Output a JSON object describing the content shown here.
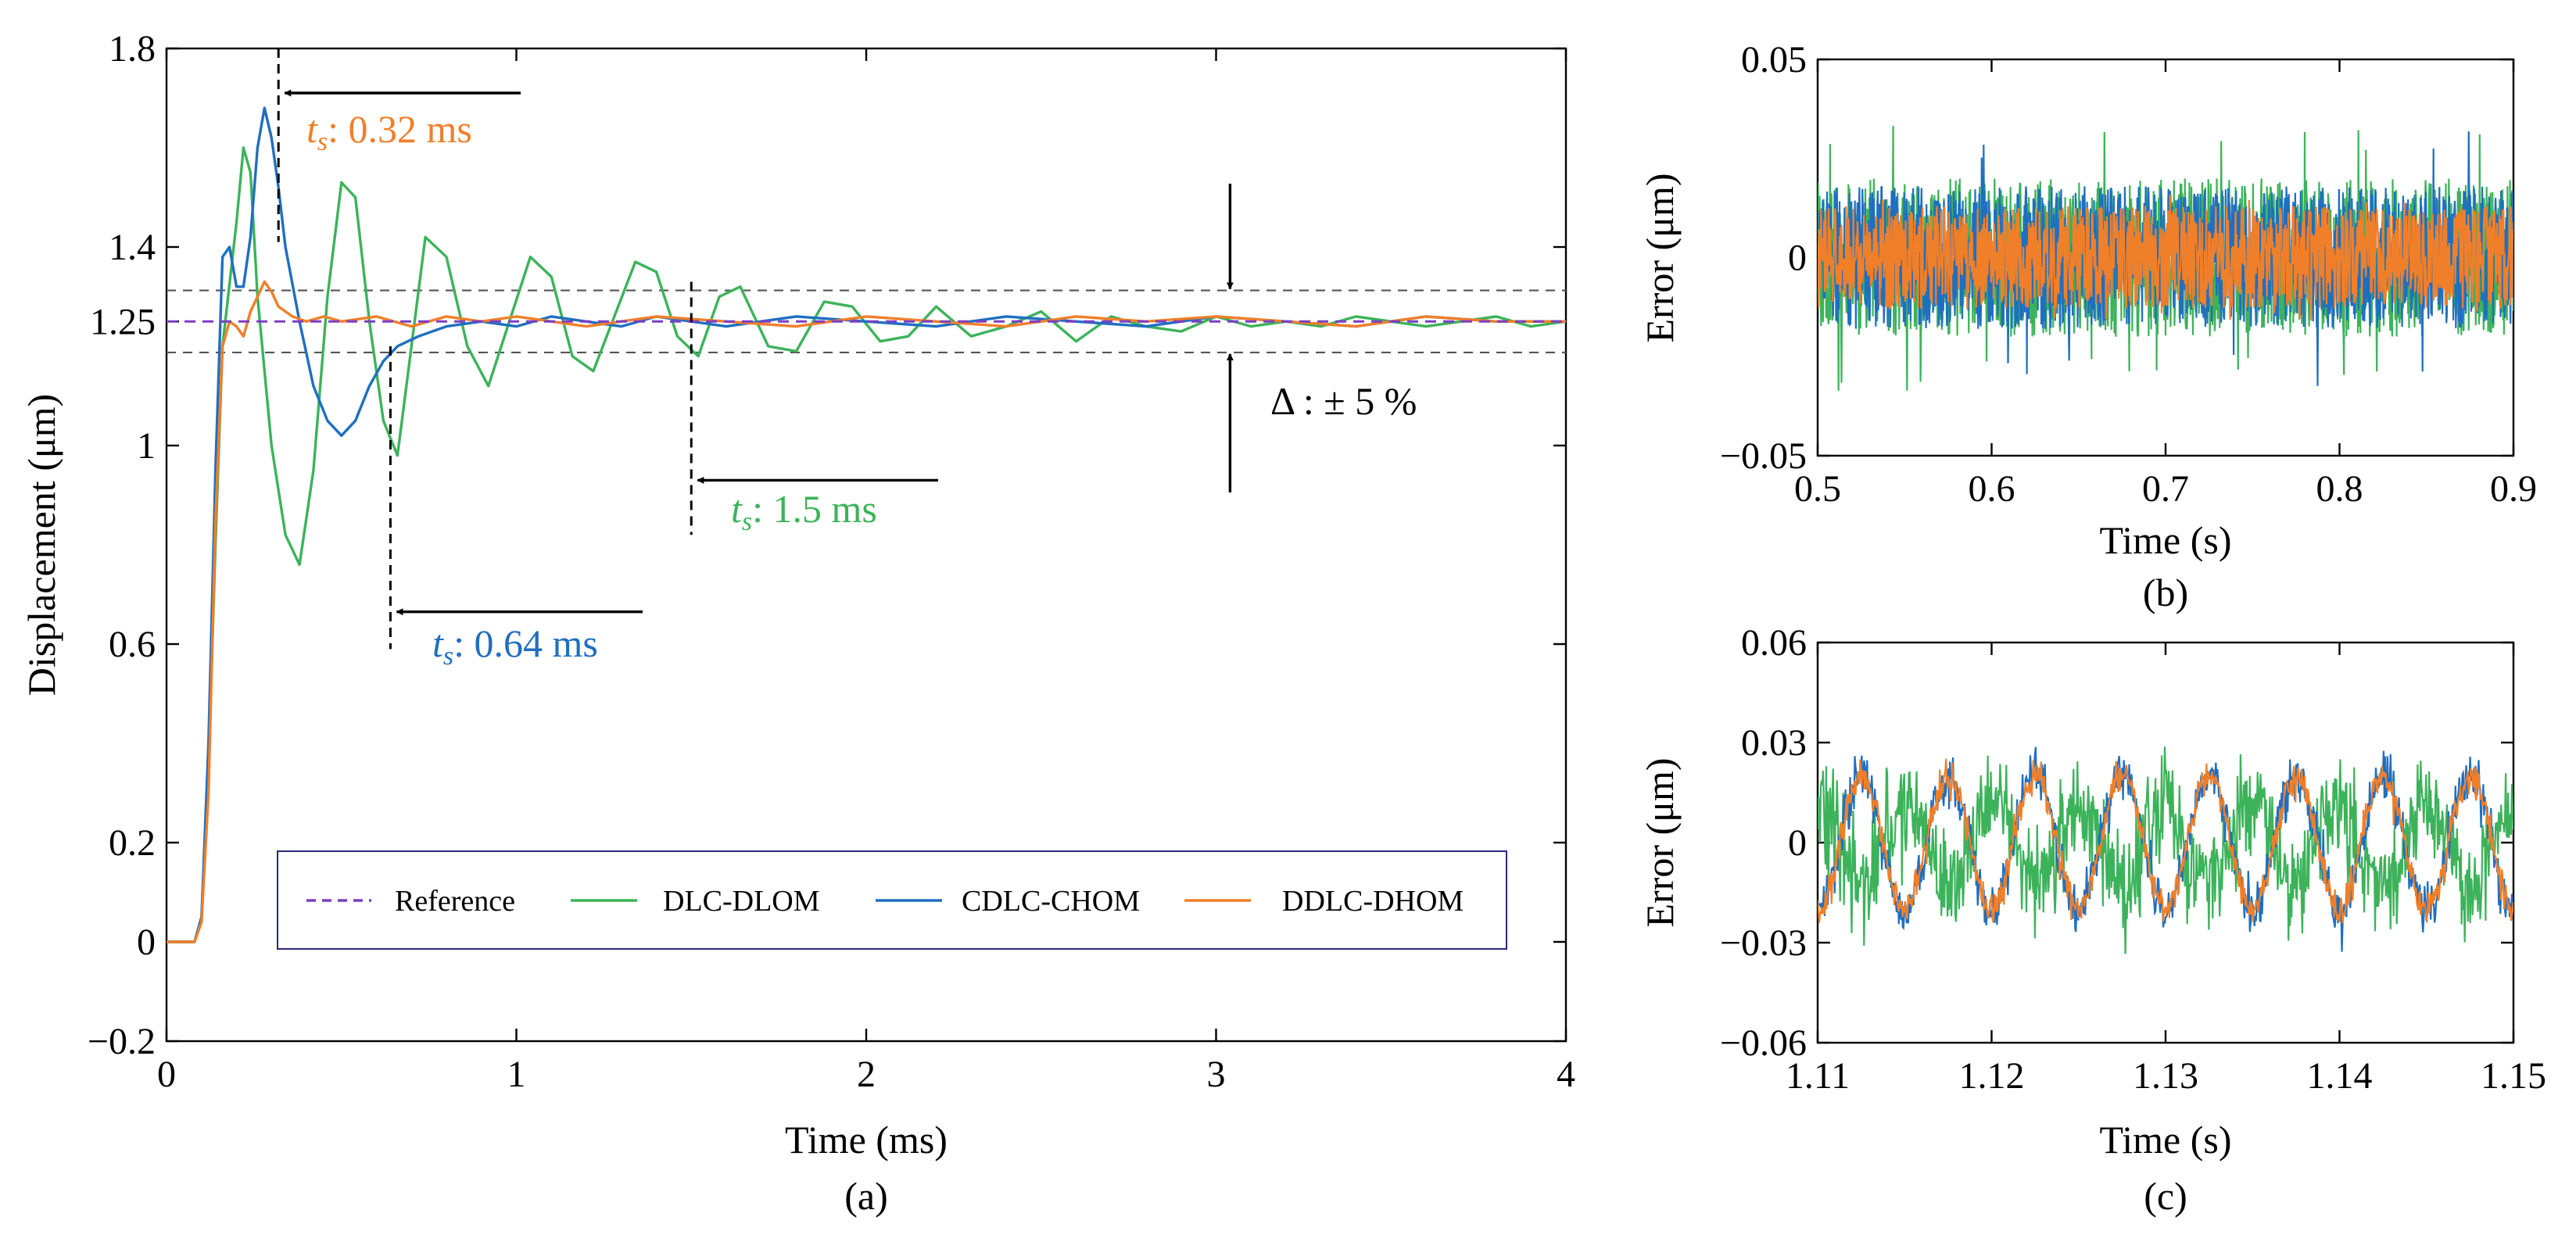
{
  "colors": {
    "reference": "#7b3fc4",
    "dlc_dlom": "#3cb35a",
    "cdlc_chom": "#1f6fc0",
    "ddlc_dhom": "#f07f2a",
    "ts_cdlc": "#1f6fc0",
    "ts_dlc": "#3cb35a",
    "ts_ddlc": "#f07f2a"
  },
  "chart_data": [
    {
      "id": "a",
      "type": "line",
      "panel_label": "(a)",
      "xlabel": "Time (ms)",
      "ylabel": "Displacement (μm)",
      "xlim": [
        0,
        4
      ],
      "ylim": [
        -0.2,
        1.8
      ],
      "xticks": [
        0,
        1,
        2,
        3,
        4
      ],
      "xtick_labels": [
        "0",
        "1",
        "2",
        "3",
        "4"
      ],
      "yticks": [
        -0.2,
        0,
        0.2,
        0.6,
        1,
        1.25,
        1.4,
        1.8
      ],
      "ytick_labels": [
        "−0.2",
        "0",
        "0.2",
        "0.6",
        "1",
        "1.25",
        "1.4",
        "1.8"
      ],
      "legend": {
        "placement": "bottom-center",
        "entries": [
          {
            "label": "Reference",
            "series": "Reference"
          },
          {
            "label": "DLC-DLOM",
            "series": "DLC-DLOM"
          },
          {
            "label": "CDLC-CHOM",
            "series": "CDLC-CHOM"
          },
          {
            "label": "DDLC-DHOM",
            "series": "DDLC-DHOM"
          }
        ]
      },
      "band": {
        "label": "Δ : ± 5 %",
        "center": 1.25,
        "upper": 1.3125,
        "lower": 1.1875
      },
      "settling_times": [
        {
          "label_prefix": "t",
          "label_sub": "s",
          "label_value": ": 0.32 ms",
          "series": "DDLC-DHOM",
          "time": 0.32
        },
        {
          "label_prefix": "t",
          "label_sub": "s",
          "label_value": ": 1.5 ms",
          "series": "DLC-DLOM",
          "time": 1.5
        },
        {
          "label_prefix": "t",
          "label_sub": "s",
          "label_value": ": 0.64 ms",
          "series": "CDLC-CHOM",
          "time": 0.64
        }
      ],
      "series": [
        {
          "name": "Reference",
          "x": [
            0,
            4
          ],
          "y": [
            1.25,
            1.25
          ]
        },
        {
          "name": "DLC-DLOM",
          "x": [
            0,
            0.08,
            0.1,
            0.12,
            0.14,
            0.16,
            0.2,
            0.22,
            0.24,
            0.26,
            0.3,
            0.34,
            0.38,
            0.42,
            0.46,
            0.5,
            0.54,
            0.58,
            0.62,
            0.66,
            0.7,
            0.74,
            0.8,
            0.86,
            0.92,
            0.98,
            1.04,
            1.1,
            1.16,
            1.22,
            1.28,
            1.34,
            1.4,
            1.46,
            1.52,
            1.58,
            1.64,
            1.72,
            1.8,
            1.88,
            1.96,
            2.04,
            2.12,
            2.2,
            2.3,
            2.4,
            2.5,
            2.6,
            2.7,
            2.8,
            2.9,
            3.0,
            3.1,
            3.2,
            3.3,
            3.4,
            3.5,
            3.6,
            3.7,
            3.8,
            3.9,
            4.0
          ],
          "y": [
            0,
            0,
            0.05,
            0.35,
            0.8,
            1.2,
            1.45,
            1.6,
            1.55,
            1.3,
            1.0,
            0.82,
            0.76,
            0.95,
            1.3,
            1.53,
            1.5,
            1.25,
            1.05,
            0.98,
            1.2,
            1.42,
            1.38,
            1.2,
            1.12,
            1.25,
            1.38,
            1.34,
            1.18,
            1.15,
            1.26,
            1.37,
            1.35,
            1.22,
            1.18,
            1.3,
            1.32,
            1.2,
            1.19,
            1.29,
            1.28,
            1.21,
            1.22,
            1.28,
            1.22,
            1.24,
            1.27,
            1.21,
            1.26,
            1.24,
            1.23,
            1.26,
            1.24,
            1.25,
            1.24,
            1.26,
            1.25,
            1.24,
            1.25,
            1.26,
            1.24,
            1.25
          ]
        },
        {
          "name": "CDLC-CHOM",
          "x": [
            0,
            0.08,
            0.1,
            0.12,
            0.14,
            0.16,
            0.18,
            0.2,
            0.22,
            0.24,
            0.26,
            0.28,
            0.3,
            0.32,
            0.34,
            0.38,
            0.42,
            0.46,
            0.5,
            0.54,
            0.58,
            0.62,
            0.66,
            0.72,
            0.8,
            0.9,
            1.0,
            1.1,
            1.2,
            1.3,
            1.4,
            1.5,
            1.6,
            1.8,
            2.0,
            2.2,
            2.4,
            2.6,
            2.8,
            3.0,
            3.2,
            3.4,
            3.6,
            3.8,
            4.0
          ],
          "y": [
            0,
            0,
            0.05,
            0.4,
            0.95,
            1.38,
            1.4,
            1.32,
            1.32,
            1.42,
            1.6,
            1.68,
            1.62,
            1.52,
            1.4,
            1.25,
            1.12,
            1.05,
            1.02,
            1.05,
            1.12,
            1.17,
            1.2,
            1.22,
            1.24,
            1.25,
            1.24,
            1.26,
            1.25,
            1.24,
            1.26,
            1.25,
            1.24,
            1.26,
            1.25,
            1.24,
            1.26,
            1.25,
            1.24,
            1.26,
            1.25,
            1.24,
            1.26,
            1.25,
            1.25
          ]
        },
        {
          "name": "DDLC-DHOM",
          "x": [
            0,
            0.08,
            0.1,
            0.12,
            0.14,
            0.16,
            0.18,
            0.2,
            0.22,
            0.24,
            0.26,
            0.28,
            0.3,
            0.32,
            0.36,
            0.4,
            0.45,
            0.5,
            0.6,
            0.7,
            0.8,
            0.9,
            1.0,
            1.2,
            1.4,
            1.6,
            1.8,
            2.0,
            2.2,
            2.4,
            2.6,
            2.8,
            3.0,
            3.2,
            3.4,
            3.6,
            3.8,
            4.0
          ],
          "y": [
            0,
            0,
            0.04,
            0.3,
            0.85,
            1.2,
            1.25,
            1.24,
            1.22,
            1.27,
            1.3,
            1.33,
            1.31,
            1.28,
            1.26,
            1.25,
            1.26,
            1.25,
            1.26,
            1.24,
            1.26,
            1.25,
            1.26,
            1.24,
            1.26,
            1.25,
            1.24,
            1.26,
            1.25,
            1.24,
            1.26,
            1.25,
            1.26,
            1.25,
            1.24,
            1.26,
            1.25,
            1.25
          ]
        }
      ]
    },
    {
      "id": "b",
      "type": "line",
      "panel_label": "(b)",
      "xlabel": "Time (s)",
      "ylabel": "Error (μm)",
      "xlim": [
        0.5,
        0.9
      ],
      "ylim": [
        -0.05,
        0.05
      ],
      "xticks": [
        0.5,
        0.6,
        0.7,
        0.8,
        0.9
      ],
      "xtick_labels": [
        "0.5",
        "0.6",
        "0.7",
        "0.8",
        "0.9"
      ],
      "yticks": [
        -0.05,
        0,
        0.05
      ],
      "ytick_labels": [
        "−0.05",
        "0",
        "0.05"
      ],
      "series": [
        {
          "name": "DLC-DLOM",
          "signal": "noise",
          "mean": 0,
          "amplitude": 0.02,
          "peak": 0.035
        },
        {
          "name": "CDLC-CHOM",
          "signal": "noise",
          "mean": 0,
          "amplitude": 0.018,
          "peak": 0.033
        },
        {
          "name": "DDLC-DHOM",
          "signal": "noise",
          "mean": 0,
          "amplitude": 0.013,
          "peak": 0.016
        }
      ]
    },
    {
      "id": "c",
      "type": "line",
      "panel_label": "(c)",
      "xlabel": "Time (s)",
      "ylabel": "Error (μm)",
      "xlim": [
        1.11,
        1.15
      ],
      "ylim": [
        -0.06,
        0.06
      ],
      "xticks": [
        1.11,
        1.12,
        1.13,
        1.14,
        1.15
      ],
      "xtick_labels": [
        "1.11",
        "1.12",
        "1.13",
        "1.14",
        "1.15"
      ],
      "yticks": [
        -0.06,
        -0.03,
        0,
        0.03,
        0.06
      ],
      "ytick_labels": [
        "−0.06",
        "−0.03",
        "0",
        "0.03",
        "0.06"
      ],
      "series": [
        {
          "name": "DLC-DLOM",
          "signal": "sine+noise",
          "period": 0.005,
          "amplitude": 0.012,
          "noise": 0.014,
          "phase": 3.14159
        },
        {
          "name": "CDLC-CHOM",
          "signal": "sine+noise",
          "period": 0.005,
          "amplitude": 0.02,
          "noise": 0.006,
          "phase": 0
        },
        {
          "name": "DDLC-DHOM",
          "signal": "sine+noise",
          "period": 0.005,
          "amplitude": 0.02,
          "noise": 0.004,
          "phase": 0
        }
      ]
    }
  ]
}
